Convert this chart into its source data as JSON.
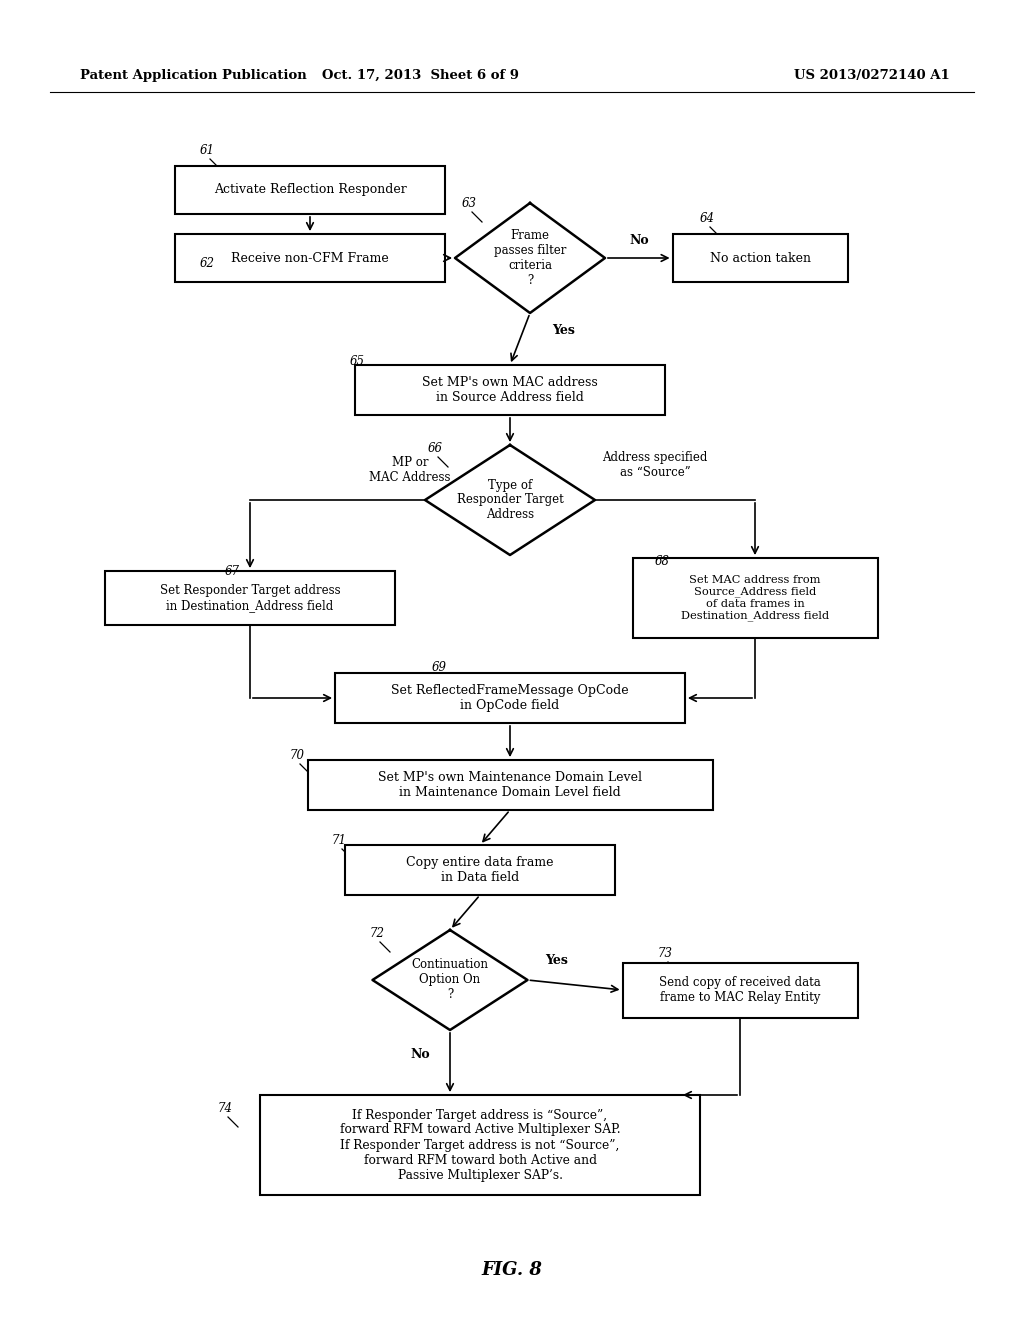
{
  "bg_color": "#ffffff",
  "header_left": "Patent Application Publication",
  "header_center": "Oct. 17, 2013  Sheet 6 of 9",
  "header_right": "US 2013/0272140 A1",
  "figure_label": "FIG. 8"
}
